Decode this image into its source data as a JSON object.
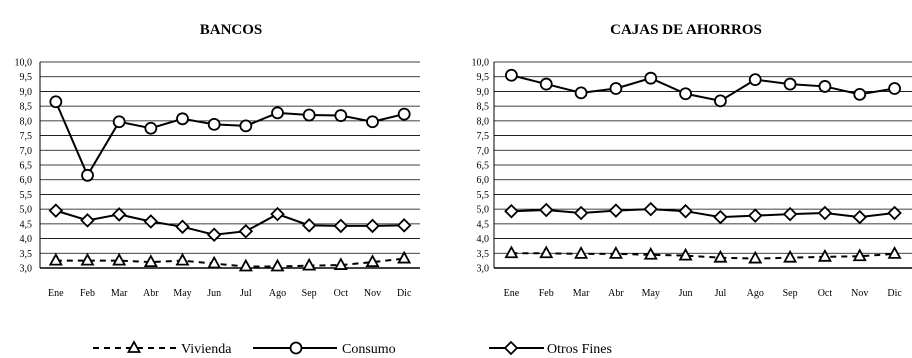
{
  "chart_data": [
    {
      "type": "line",
      "title": "BANCOS",
      "categories": [
        "Ene",
        "Feb",
        "Mar",
        "Abr",
        "May",
        "Jun",
        "Jul",
        "Ago",
        "Sep",
        "Oct",
        "Nov",
        "Dic"
      ],
      "ylim": [
        3.0,
        10.0
      ],
      "yticks": [
        "10,0",
        "9,5",
        "9,0",
        "8,5",
        "8,0",
        "7,5",
        "7,0",
        "6,5",
        "6,0",
        "5,5",
        "5,0",
        "4,5",
        "4,0",
        "3,5",
        "3,0"
      ],
      "grid": true,
      "series": [
        {
          "name": "Vivienda",
          "marker": "triangle",
          "dash": true,
          "values": [
            3.25,
            3.25,
            3.25,
            3.2,
            3.25,
            3.15,
            3.05,
            3.05,
            3.08,
            3.1,
            3.2,
            3.32
          ]
        },
        {
          "name": "Consumo",
          "marker": "circle",
          "dash": false,
          "values": [
            8.65,
            6.15,
            7.97,
            7.75,
            8.07,
            7.88,
            7.83,
            8.27,
            8.2,
            8.18,
            7.97,
            8.23
          ]
        },
        {
          "name": "Otros Fines",
          "marker": "diamond",
          "dash": false,
          "values": [
            4.95,
            4.62,
            4.82,
            4.58,
            4.4,
            4.13,
            4.25,
            4.83,
            4.45,
            4.43,
            4.43,
            4.45
          ]
        }
      ]
    },
    {
      "type": "line",
      "title": "CAJAS DE AHORROS",
      "categories": [
        "Ene",
        "Feb",
        "Mar",
        "Abr",
        "May",
        "Jun",
        "Jul",
        "Ago",
        "Sep",
        "Oct",
        "Nov",
        "Dic"
      ],
      "ylim": [
        3.0,
        10.0
      ],
      "yticks": [
        "10,0",
        "9,5",
        "9,0",
        "8,5",
        "8,0",
        "7,5",
        "7,0",
        "6,5",
        "6,0",
        "5,5",
        "5,0",
        "4,5",
        "4,0",
        "3,5",
        "3,0"
      ],
      "grid": true,
      "series": [
        {
          "name": "Vivienda",
          "marker": "triangle",
          "dash": true,
          "values": [
            3.5,
            3.5,
            3.48,
            3.48,
            3.45,
            3.42,
            3.35,
            3.32,
            3.35,
            3.38,
            3.4,
            3.48
          ]
        },
        {
          "name": "Consumo",
          "marker": "circle",
          "dash": false,
          "values": [
            9.55,
            9.25,
            8.95,
            9.1,
            9.45,
            8.92,
            8.68,
            9.4,
            9.25,
            9.17,
            8.9,
            9.1
          ]
        },
        {
          "name": "Otros Fines",
          "marker": "diamond",
          "dash": false,
          "values": [
            4.93,
            4.97,
            4.87,
            4.95,
            5.0,
            4.93,
            4.73,
            4.78,
            4.83,
            4.87,
            4.73,
            4.87
          ]
        }
      ]
    }
  ],
  "legend": {
    "placement": "bottom",
    "items": [
      {
        "label": "Vivienda",
        "marker": "triangle",
        "dash": true
      },
      {
        "label": "Consumo",
        "marker": "circle",
        "dash": false
      },
      {
        "label": "Otros Fines",
        "marker": "diamond",
        "dash": false
      }
    ]
  },
  "colors": {
    "line": "#000000",
    "grid": "#000000",
    "marker_fill": "#ffffff",
    "background": "#ffffff"
  }
}
